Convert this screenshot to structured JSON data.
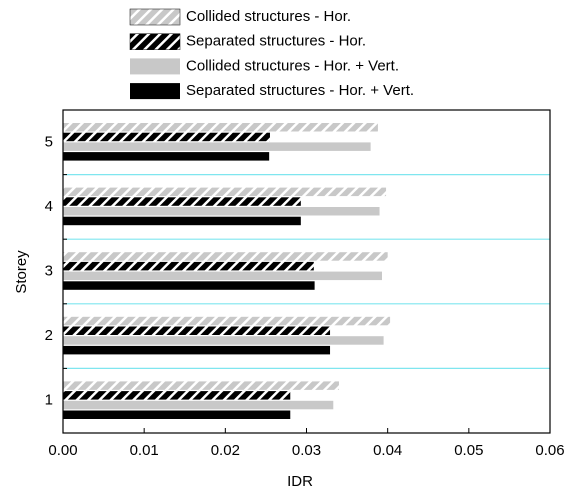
{
  "chart_data": {
    "type": "hbar",
    "categories": [
      "1",
      "2",
      "3",
      "4",
      "5"
    ],
    "series": [
      {
        "name": "Collided structures - Hor.",
        "color": "#c8c8c8",
        "hatch": true,
        "values": [
          0.034,
          0.0403,
          0.04,
          0.0398,
          0.0388
        ]
      },
      {
        "name": "Separated structures - Hor.",
        "color": "#000000",
        "hatch": true,
        "values": [
          0.028,
          0.0329,
          0.0309,
          0.0293,
          0.0255
        ]
      },
      {
        "name": "Collided structures - Hor. + Vert.",
        "color": "#c8c8c8",
        "hatch": false,
        "values": [
          0.0333,
          0.0395,
          0.0393,
          0.039,
          0.0379
        ]
      },
      {
        "name": "Separated structures - Hor. + Vert.",
        "color": "#000000",
        "hatch": false,
        "values": [
          0.028,
          0.0329,
          0.031,
          0.0293,
          0.0254
        ]
      }
    ],
    "xlabel": "IDR",
    "ylabel": "Storey",
    "xlim": [
      0,
      0.06
    ],
    "xticks": [
      {
        "value": 0,
        "label": "0.00"
      },
      0.01,
      0.02,
      0.03,
      0.04,
      0.05,
      0.06
    ],
    "category_separators": true,
    "separator_color": "#7fe6ef"
  }
}
